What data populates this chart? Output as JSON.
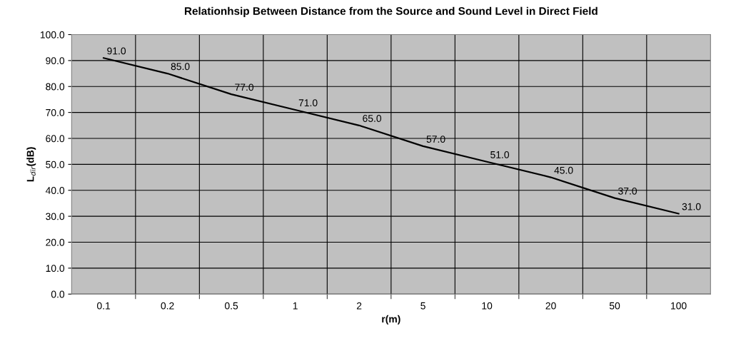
{
  "chart_data": {
    "type": "line",
    "title": "Relationhsip Between Distance from the Source and Sound Level in Direct Field",
    "xlabel": "r(m)",
    "ylabel": "L$_{dir}$(dB)",
    "categories": [
      "0.1",
      "0.2",
      "0.5",
      "1",
      "2",
      "5",
      "10",
      "20",
      "50",
      "100"
    ],
    "series": [
      {
        "color": "#000000",
        "values": [
          91,
          85,
          77,
          71,
          65,
          57,
          51,
          45,
          37,
          31
        ],
        "value_labels": [
          "91.0",
          "85.0",
          "77.0",
          "71.0",
          "65.0",
          "57.0",
          "51.0",
          "45.0",
          "37.0",
          "31.0"
        ]
      }
    ],
    "ylim": [
      0,
      100
    ],
    "yticks": [
      {
        "value": 0,
        "label": "0.0"
      },
      {
        "value": 10,
        "label": "10.0"
      },
      {
        "value": 20,
        "label": "20.0"
      },
      {
        "value": 30,
        "label": "30.0"
      },
      {
        "value": 40,
        "label": "40.0"
      },
      {
        "value": 50,
        "label": "50.0"
      },
      {
        "value": 60,
        "label": "60.0"
      },
      {
        "value": 70,
        "label": "70.0"
      },
      {
        "value": 80,
        "label": "80.0"
      },
      {
        "value": 90,
        "label": "90.0"
      },
      {
        "value": 100,
        "label": "100.0"
      }
    ],
    "grid": true,
    "legend": false,
    "marker": "none",
    "line_style": "solid"
  }
}
